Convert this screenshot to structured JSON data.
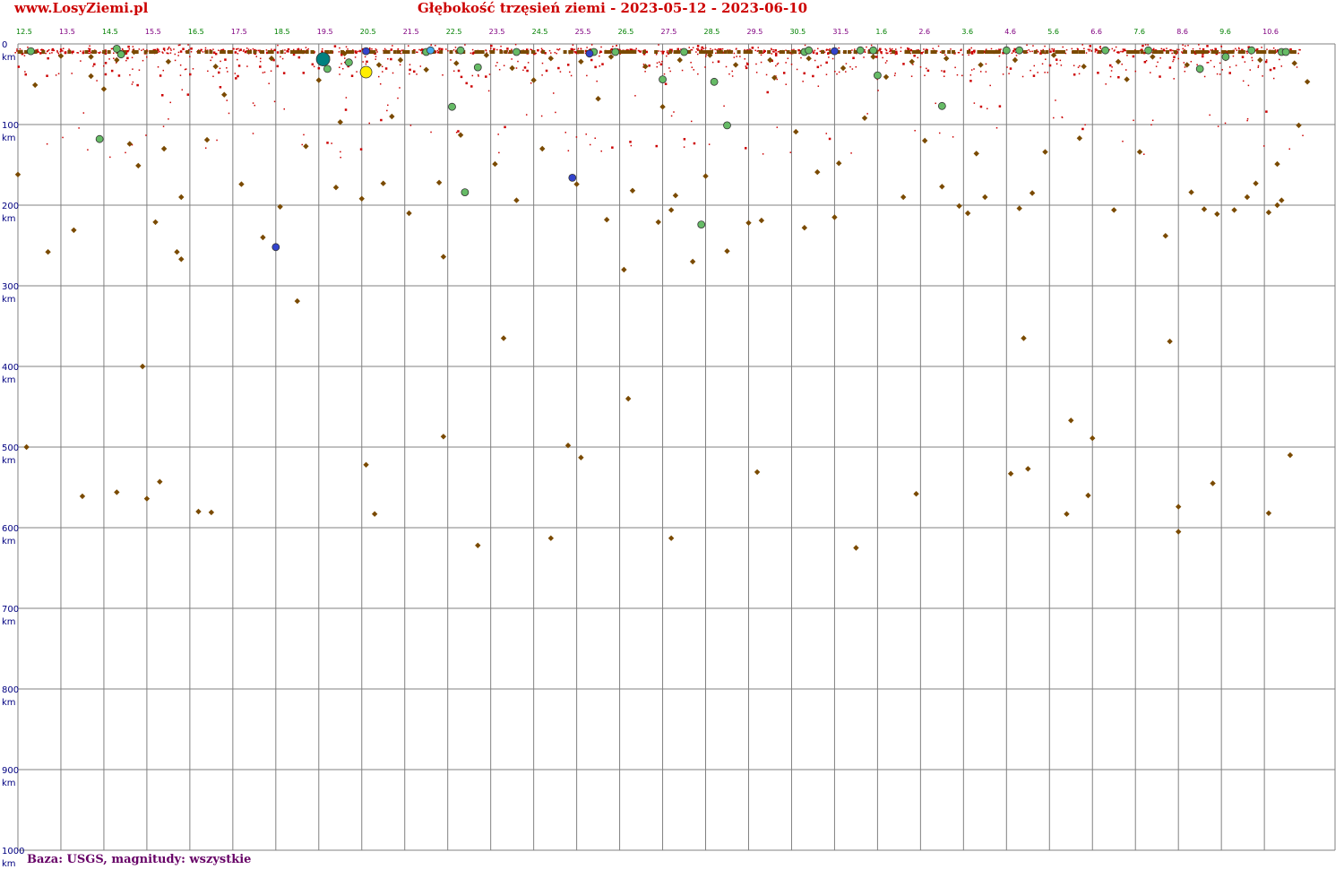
{
  "header": {
    "site": "www.LosyZiemi.pl",
    "title": "Głębokość trzęsień ziemi - 2023-05-12 - 2023-06-10"
  },
  "footer": {
    "note": "Baza: USGS, magnitudy: wszystkie"
  },
  "colors": {
    "grid": "#808080",
    "title": "#cc0000",
    "axis_label": "#000080",
    "footer": "#660066",
    "tick_green": "#008000",
    "tick_purple": "#800080",
    "event_small": "#cc0000",
    "event_diamond": "#7a4a00",
    "event_green": "#66bb66",
    "event_blue": "#3344cc",
    "event_lightblue": "#44aaee",
    "event_teal": "#008080",
    "event_yellow": "#ffee00"
  },
  "chart_data": {
    "type": "scatter",
    "title": "Głębokość trzęsień ziemi - 2023-05-12 - 2023-06-10",
    "xlabel": "",
    "ylabel": "km",
    "xlim": [
      12.0,
      42.6
    ],
    "ylim": [
      0,
      1000
    ],
    "y_inverted": true,
    "grid": true,
    "x_tick_labels": [
      "12.5",
      "13.5",
      "14.5",
      "15.5",
      "16.5",
      "17.5",
      "18.5",
      "19.5",
      "20.5",
      "21.5",
      "22.5",
      "23.5",
      "24.5",
      "25.5",
      "26.5",
      "27.5",
      "28.5",
      "29.5",
      "30.5",
      "31.5",
      "1.6",
      "2.6",
      "3.6",
      "4.6",
      "5.6",
      "6.6",
      "7.6",
      "8.6",
      "9.6",
      "10.6"
    ],
    "x_tick_colors": [
      "green",
      "purple",
      "green",
      "purple",
      "green",
      "purple",
      "green",
      "purple",
      "green",
      "purple",
      "green",
      "purple",
      "green",
      "purple",
      "green",
      "purple",
      "green",
      "purple",
      "green",
      "purple",
      "green",
      "purple",
      "green",
      "purple",
      "green",
      "purple",
      "green",
      "purple",
      "green",
      "purple"
    ],
    "y_ticks": [
      0,
      100,
      200,
      300,
      400,
      500,
      600,
      700,
      800,
      900,
      1000
    ],
    "y_unit": "km",
    "series": [
      {
        "name": "",
        "marker": "diamond",
        "color": "#7a4a00",
        "points": [
          [
            12.5,
            162
          ],
          [
            12.7,
            500
          ],
          [
            12.9,
            51
          ],
          [
            13.2,
            258
          ],
          [
            13.5,
            15
          ],
          [
            13.8,
            231
          ],
          [
            14.0,
            561
          ],
          [
            14.2,
            40
          ],
          [
            14.5,
            56
          ],
          [
            14.8,
            556
          ],
          [
            15.1,
            124
          ],
          [
            15.3,
            151
          ],
          [
            15.4,
            400
          ],
          [
            15.5,
            564
          ],
          [
            15.7,
            221
          ],
          [
            15.8,
            543
          ],
          [
            15.9,
            130
          ],
          [
            16.2,
            258
          ],
          [
            16.3,
            267
          ],
          [
            16.3,
            190
          ],
          [
            16.7,
            580
          ],
          [
            16.9,
            119
          ],
          [
            17.0,
            581
          ],
          [
            17.3,
            63
          ],
          [
            17.7,
            174
          ],
          [
            18.2,
            240
          ],
          [
            18.6,
            202
          ],
          [
            19.0,
            319
          ],
          [
            19.2,
            127
          ],
          [
            19.5,
            45
          ],
          [
            19.9,
            178
          ],
          [
            20.0,
            97
          ],
          [
            20.5,
            192
          ],
          [
            20.6,
            522
          ],
          [
            20.8,
            583
          ],
          [
            21.0,
            173
          ],
          [
            21.2,
            90
          ],
          [
            21.6,
            210
          ],
          [
            22.3,
            172
          ],
          [
            22.4,
            264
          ],
          [
            22.4,
            487
          ],
          [
            22.8,
            113
          ],
          [
            23.2,
            622
          ],
          [
            23.6,
            149
          ],
          [
            23.8,
            365
          ],
          [
            24.1,
            194
          ],
          [
            24.5,
            45
          ],
          [
            24.7,
            130
          ],
          [
            24.9,
            613
          ],
          [
            25.3,
            498
          ],
          [
            25.5,
            174
          ],
          [
            25.6,
            513
          ],
          [
            26.0,
            68
          ],
          [
            26.2,
            218
          ],
          [
            26.6,
            280
          ],
          [
            26.7,
            440
          ],
          [
            26.8,
            182
          ],
          [
            27.4,
            221
          ],
          [
            27.5,
            78
          ],
          [
            27.7,
            206
          ],
          [
            27.7,
            613
          ],
          [
            27.8,
            188
          ],
          [
            28.2,
            270
          ],
          [
            28.5,
            164
          ],
          [
            29.0,
            257
          ],
          [
            29.5,
            222
          ],
          [
            29.7,
            531
          ],
          [
            29.8,
            219
          ],
          [
            30.1,
            42
          ],
          [
            30.6,
            109
          ],
          [
            30.8,
            228
          ],
          [
            31.1,
            159
          ],
          [
            31.5,
            215
          ],
          [
            31.6,
            148
          ],
          [
            32.0,
            625
          ],
          [
            32.2,
            92
          ],
          [
            32.7,
            41
          ],
          [
            33.1,
            190
          ],
          [
            33.4,
            558
          ],
          [
            33.6,
            120
          ],
          [
            34.0,
            177
          ],
          [
            34.4,
            201
          ],
          [
            34.6,
            210
          ],
          [
            34.8,
            136
          ],
          [
            35.0,
            190
          ],
          [
            35.6,
            533
          ],
          [
            35.8,
            204
          ],
          [
            35.9,
            365
          ],
          [
            36.0,
            527
          ],
          [
            36.1,
            185
          ],
          [
            36.4,
            134
          ],
          [
            36.9,
            583
          ],
          [
            37.0,
            467
          ],
          [
            37.2,
            117
          ],
          [
            37.4,
            560
          ],
          [
            37.5,
            489
          ],
          [
            38.0,
            206
          ],
          [
            38.3,
            44
          ],
          [
            38.6,
            134
          ],
          [
            39.2,
            238
          ],
          [
            39.3,
            369
          ],
          [
            39.5,
            574
          ],
          [
            39.5,
            605
          ],
          [
            39.8,
            184
          ],
          [
            40.1,
            205
          ],
          [
            40.3,
            545
          ],
          [
            40.4,
            211
          ],
          [
            40.8,
            206
          ],
          [
            41.1,
            190
          ],
          [
            41.3,
            173
          ],
          [
            41.6,
            209
          ],
          [
            41.6,
            582
          ],
          [
            41.8,
            200
          ],
          [
            41.8,
            149
          ],
          [
            41.9,
            194
          ],
          [
            42.1,
            510
          ],
          [
            42.3,
            101
          ],
          [
            42.5,
            47
          ],
          [
            14.2,
            16
          ],
          [
            14.8,
            20
          ],
          [
            15.2,
            10
          ],
          [
            16.0,
            22
          ],
          [
            17.1,
            28
          ],
          [
            18.4,
            18
          ],
          [
            19.7,
            16
          ],
          [
            20.1,
            12
          ],
          [
            20.9,
            26
          ],
          [
            21.4,
            20
          ],
          [
            22.0,
            32
          ],
          [
            22.7,
            24
          ],
          [
            23.4,
            14
          ],
          [
            24.0,
            30
          ],
          [
            24.9,
            18
          ],
          [
            25.6,
            22
          ],
          [
            26.3,
            16
          ],
          [
            27.1,
            28
          ],
          [
            27.9,
            20
          ],
          [
            28.6,
            14
          ],
          [
            29.2,
            26
          ],
          [
            30.0,
            20
          ],
          [
            30.9,
            18
          ],
          [
            31.7,
            30
          ],
          [
            32.4,
            16
          ],
          [
            33.3,
            22
          ],
          [
            34.1,
            18
          ],
          [
            34.9,
            26
          ],
          [
            35.7,
            20
          ],
          [
            36.6,
            14
          ],
          [
            37.3,
            28
          ],
          [
            38.1,
            22
          ],
          [
            38.9,
            16
          ],
          [
            39.7,
            26
          ],
          [
            40.6,
            18
          ],
          [
            41.4,
            20
          ],
          [
            42.2,
            24
          ]
        ]
      },
      {
        "name": "",
        "marker": "circle",
        "color": "#66bb66",
        "points": [
          [
            12.8,
            9
          ],
          [
            14.8,
            6
          ],
          [
            14.9,
            13
          ],
          [
            14.4,
            118
          ],
          [
            19.7,
            31
          ],
          [
            20.2,
            23
          ],
          [
            22.0,
            10
          ],
          [
            22.6,
            78
          ],
          [
            22.8,
            8
          ],
          [
            22.9,
            184
          ],
          [
            23.2,
            29
          ],
          [
            24.1,
            10
          ],
          [
            25.9,
            10
          ],
          [
            26.4,
            10
          ],
          [
            27.5,
            44
          ],
          [
            28.0,
            10
          ],
          [
            28.4,
            224
          ],
          [
            28.7,
            47
          ],
          [
            29.0,
            101
          ],
          [
            30.8,
            10
          ],
          [
            30.9,
            8
          ],
          [
            32.1,
            8
          ],
          [
            32.4,
            8
          ],
          [
            32.5,
            39
          ],
          [
            34.0,
            77
          ],
          [
            35.5,
            8
          ],
          [
            35.8,
            8
          ],
          [
            37.8,
            8
          ],
          [
            38.8,
            8
          ],
          [
            40.0,
            31
          ],
          [
            40.6,
            16
          ],
          [
            41.2,
            8
          ],
          [
            41.9,
            10
          ],
          [
            42.0,
            10
          ]
        ]
      },
      {
        "name": "",
        "marker": "circle",
        "color": "#3344cc",
        "points": [
          [
            18.5,
            252
          ],
          [
            20.6,
            9
          ],
          [
            25.4,
            166
          ],
          [
            25.8,
            12
          ],
          [
            31.5,
            9
          ]
        ]
      },
      {
        "name": "",
        "marker": "circle",
        "color": "#44aaee",
        "points": [
          [
            22.1,
            8
          ]
        ]
      },
      {
        "name": "",
        "marker": "circle",
        "color": "#008080",
        "points": [
          [
            19.6,
            19
          ]
        ]
      },
      {
        "name": "",
        "marker": "circle",
        "color": "#ffee00",
        "points": [
          [
            20.6,
            35
          ]
        ]
      }
    ]
  }
}
